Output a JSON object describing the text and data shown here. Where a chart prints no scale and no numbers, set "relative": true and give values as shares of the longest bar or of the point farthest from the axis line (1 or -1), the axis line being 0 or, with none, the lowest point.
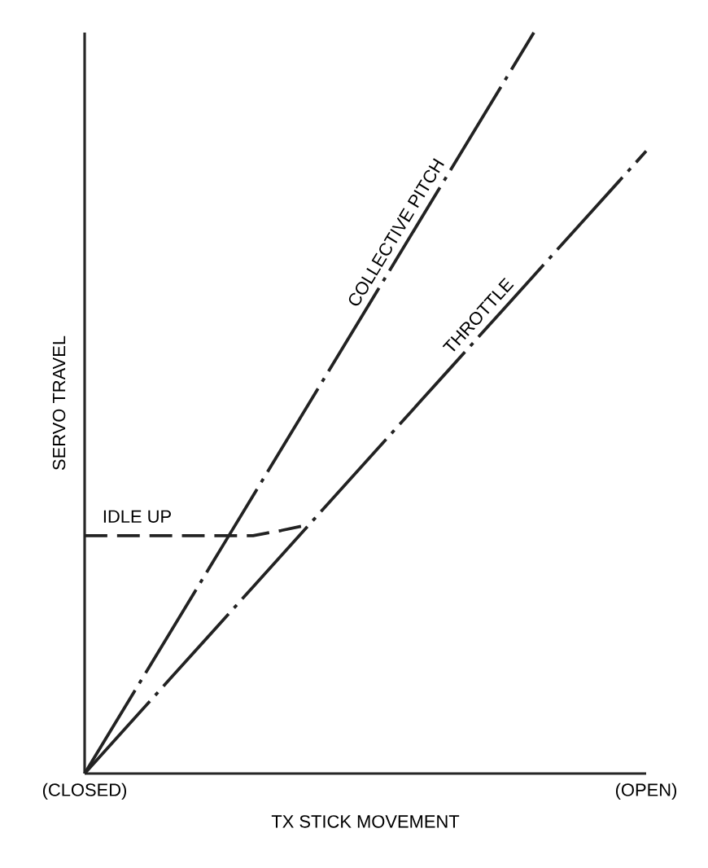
{
  "chart_data": {
    "type": "line",
    "relative": true,
    "xlabel": "TX STICK MOVEMENT",
    "ylabel": "SERVO TRAVEL",
    "categories": [
      "(CLOSED)",
      null,
      null,
      null,
      null,
      null,
      null,
      null,
      null,
      null,
      null,
      null,
      null,
      null,
      null,
      null,
      null,
      null,
      null,
      null,
      "(OPEN)"
    ],
    "series": [
      {
        "name": "COLLECTIVE PITCH",
        "color": "#222222",
        "line_style": "dashdot",
        "values": [
          0,
          0.0625,
          0.125,
          0.1875,
          0.25,
          0.3125,
          0.375,
          0.4375,
          0.5,
          0.5625,
          0.625,
          0.6875,
          0.75,
          0.8125,
          0.875,
          0.9375,
          1,
          null,
          null,
          null,
          null
        ]
      },
      {
        "name": "THROTTLE",
        "color": "#222222",
        "line_style": "dashdot",
        "values": [
          0,
          0.042,
          0.084,
          0.126,
          0.168,
          0.21,
          0.252,
          0.294,
          0.336,
          0.378,
          0.42,
          0.462,
          0.504,
          0.546,
          0.588,
          0.63,
          0.672,
          0.714,
          0.756,
          0.798,
          0.84
        ]
      },
      {
        "name": "IDLE UP",
        "color": "#222222",
        "line_style": "dashed",
        "values": [
          0.321,
          0.321,
          0.321,
          0.321,
          0.321,
          0.321,
          0.321,
          0.328,
          0.336,
          null,
          null,
          null,
          null,
          null,
          null,
          null,
          null,
          null,
          null,
          null,
          null
        ]
      }
    ]
  }
}
